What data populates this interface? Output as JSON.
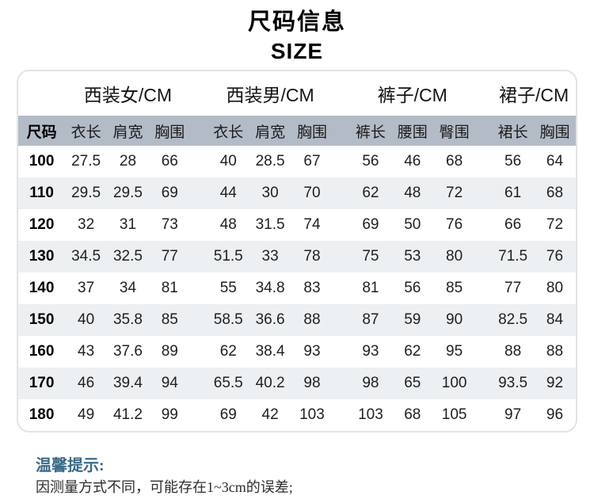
{
  "title": {
    "zh": "尺码信息",
    "en": "SIZE"
  },
  "size_chart": {
    "size_column_header": "尺码",
    "groups": [
      {
        "label": "西装女/CM",
        "columns": [
          "衣长",
          "肩宽",
          "胸围"
        ]
      },
      {
        "label": "西装男/CM",
        "columns": [
          "衣长",
          "肩宽",
          "胸围"
        ]
      },
      {
        "label": "裤子/CM",
        "columns": [
          "裤长",
          "腰围",
          "臀围"
        ]
      },
      {
        "label": "裙子/CM",
        "columns": [
          "裙长",
          "胸围"
        ]
      }
    ],
    "rows": [
      {
        "size": "100",
        "values": [
          "27.5",
          "28",
          "66",
          "40",
          "28.5",
          "67",
          "56",
          "46",
          "68",
          "56",
          "64"
        ]
      },
      {
        "size": "110",
        "values": [
          "29.5",
          "29.5",
          "69",
          "44",
          "30",
          "70",
          "62",
          "48",
          "72",
          "61",
          "68"
        ]
      },
      {
        "size": "120",
        "values": [
          "32",
          "31",
          "73",
          "48",
          "31.5",
          "74",
          "69",
          "50",
          "76",
          "66",
          "72"
        ]
      },
      {
        "size": "130",
        "values": [
          "34.5",
          "32.5",
          "77",
          "51.5",
          "33",
          "78",
          "75",
          "53",
          "80",
          "71.5",
          "76"
        ]
      },
      {
        "size": "140",
        "values": [
          "37",
          "34",
          "81",
          "55",
          "34.8",
          "83",
          "81",
          "56",
          "85",
          "77",
          "80"
        ]
      },
      {
        "size": "150",
        "values": [
          "40",
          "35.8",
          "85",
          "58.5",
          "36.6",
          "88",
          "87",
          "59",
          "90",
          "82.5",
          "84"
        ]
      },
      {
        "size": "160",
        "values": [
          "43",
          "37.6",
          "89",
          "62",
          "38.4",
          "93",
          "93",
          "62",
          "95",
          "88",
          "88"
        ]
      },
      {
        "size": "170",
        "values": [
          "46",
          "39.4",
          "94",
          "65.5",
          "40.2",
          "98",
          "98",
          "65",
          "100",
          "93.5",
          "92"
        ]
      },
      {
        "size": "180",
        "values": [
          "49",
          "41.2",
          "99",
          "69",
          "42",
          "103",
          "103",
          "68",
          "105",
          "97",
          "96"
        ]
      }
    ]
  },
  "tips": {
    "title": "温馨提示:",
    "lines": [
      "因测量方式不同，可能存在1~3cm的误差;"
    ]
  },
  "colors": {
    "header_band": "#b3bbc7",
    "stripe_row": "#edf0f2",
    "card_border": "#e4e4e4",
    "tips_title": "#3c6a88"
  }
}
